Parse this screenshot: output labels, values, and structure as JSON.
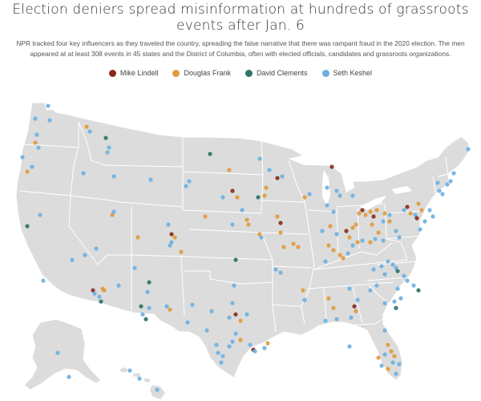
{
  "title": "Election deniers spread misinformation at hundreds of grassroots events after Jan. 6",
  "dek": "NPR tracked four key influencers as they traveled the country, spreading the false narrative that there was rampant fraud in the 2020 election. The men appeared at at least 308 events in 45 states and the District of Columbia, often with elected officials, candidates and grassroots organizations.",
  "legend": [
    {
      "name": "Mike Lindell",
      "color": "#8b2b1c"
    },
    {
      "name": "Douglas Frank",
      "color": "#e09a3c"
    },
    {
      "name": "David Clements",
      "color": "#2f7368"
    },
    {
      "name": "Seth Keshel",
      "color": "#6cb1e2"
    }
  ],
  "colors": {
    "land": "#dcdcdc",
    "borders": "#ffffff"
  }
}
